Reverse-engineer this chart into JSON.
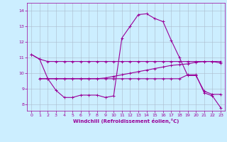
{
  "xlabel": "Windchill (Refroidissement éolien,°C)",
  "bg_color": "#cceeff",
  "grid_color": "#aabbcc",
  "line_color": "#990099",
  "x_ticks": [
    0,
    1,
    2,
    3,
    4,
    5,
    6,
    7,
    8,
    9,
    10,
    11,
    12,
    13,
    14,
    15,
    16,
    17,
    18,
    19,
    20,
    21,
    22,
    23
  ],
  "y_ticks": [
    8,
    9,
    10,
    11,
    12,
    13,
    14
  ],
  "xlim": [
    -0.5,
    23.5
  ],
  "ylim": [
    7.6,
    14.5
  ],
  "line1_x": [
    0,
    1,
    2,
    3,
    4,
    5,
    6,
    7,
    8,
    9,
    10,
    11,
    12,
    13,
    14,
    15,
    16,
    17,
    18,
    19,
    20,
    21,
    22,
    23
  ],
  "line1_y": [
    11.2,
    10.9,
    10.75,
    10.75,
    10.75,
    10.75,
    10.75,
    10.75,
    10.75,
    10.75,
    10.75,
    10.75,
    10.75,
    10.75,
    10.75,
    10.75,
    10.75,
    10.75,
    10.75,
    10.75,
    10.75,
    10.75,
    10.75,
    10.75
  ],
  "line2_x": [
    0,
    1,
    2,
    3,
    4,
    5,
    6,
    7,
    8,
    9,
    10,
    11,
    12,
    13,
    14,
    15,
    16,
    17,
    18,
    19,
    20,
    21,
    22,
    23
  ],
  "line2_y": [
    11.2,
    10.9,
    9.65,
    8.9,
    8.45,
    8.45,
    8.6,
    8.6,
    8.6,
    8.45,
    8.55,
    12.25,
    13.0,
    13.75,
    13.8,
    13.5,
    13.3,
    12.1,
    11.0,
    9.85,
    9.85,
    8.85,
    8.65,
    8.65
  ],
  "line3_x": [
    1,
    2,
    3,
    4,
    5,
    6,
    7,
    8,
    9,
    10,
    11,
    12,
    13,
    14,
    15,
    16,
    17,
    18,
    19,
    20,
    21,
    22,
    23
  ],
  "line3_y": [
    9.65,
    9.65,
    9.65,
    9.65,
    9.65,
    9.65,
    9.65,
    9.65,
    9.65,
    9.65,
    9.65,
    9.65,
    9.65,
    9.65,
    9.65,
    9.65,
    9.65,
    9.65,
    9.9,
    9.9,
    8.75,
    8.55,
    7.8
  ],
  "line4_x": [
    1,
    2,
    3,
    4,
    5,
    6,
    7,
    8,
    9,
    10,
    11,
    12,
    13,
    14,
    15,
    16,
    17,
    18,
    19,
    20,
    21,
    22,
    23
  ],
  "line4_y": [
    9.65,
    9.65,
    9.65,
    9.65,
    9.65,
    9.65,
    9.65,
    9.65,
    9.7,
    9.8,
    9.9,
    10.0,
    10.1,
    10.2,
    10.3,
    10.4,
    10.5,
    10.55,
    10.6,
    10.7,
    10.75,
    10.75,
    10.65
  ]
}
